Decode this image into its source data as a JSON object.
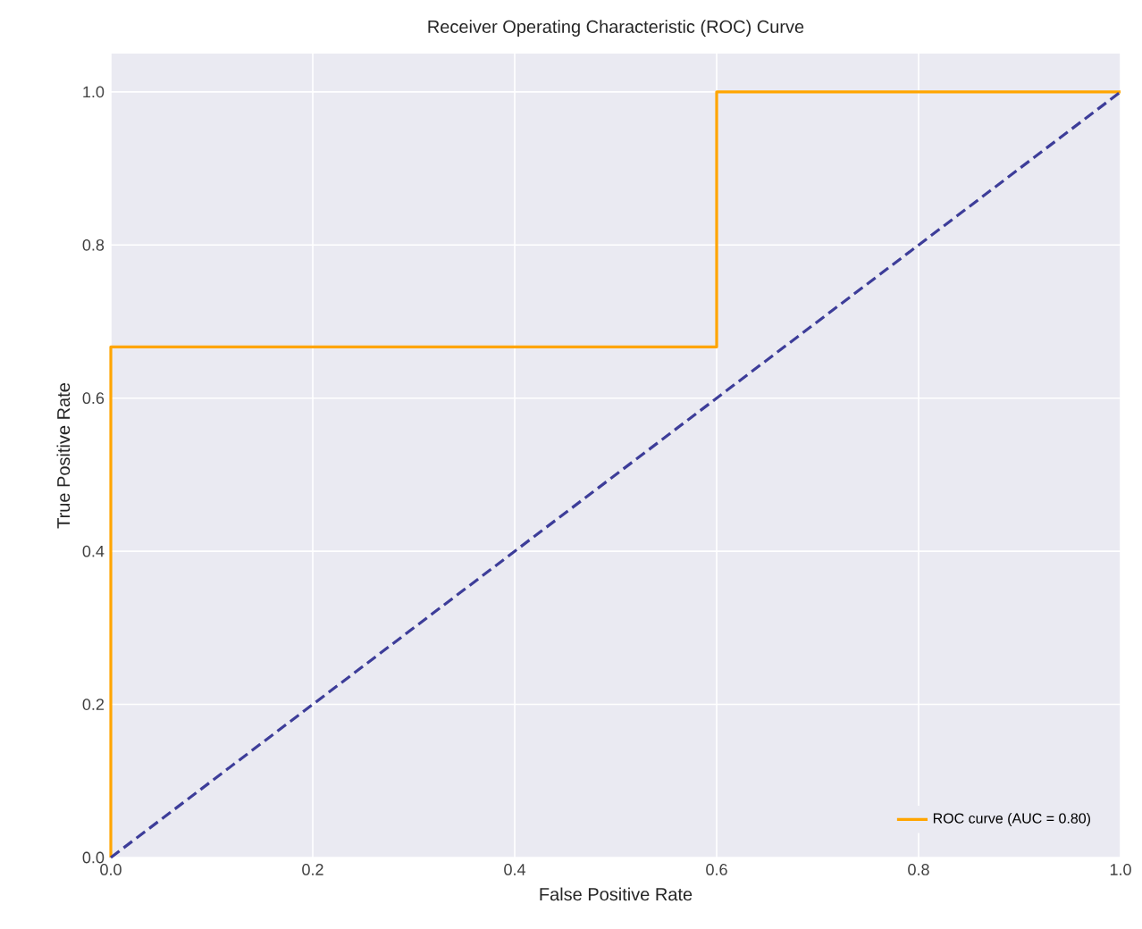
{
  "chart_data": {
    "type": "line",
    "title": "Receiver Operating Characteristic (ROC) Curve",
    "xlabel": "False Positive Rate",
    "ylabel": "True Positive Rate",
    "series": [
      {
        "name": "ROC curve (AUC = 0.80)",
        "color": "#ffa500",
        "x": [
          0,
          0,
          0.6,
          0.6,
          1
        ],
        "values": [
          0,
          0.667,
          0.667,
          1,
          1
        ]
      },
      {
        "color": "#3d3d99",
        "x": [
          0,
          1
        ],
        "values": [
          0,
          1
        ],
        "line_style": "dashed"
      }
    ],
    "xlim": [
      0,
      1
    ],
    "ylim": [
      0,
      1.05
    ],
    "xticks": [
      {
        "value": 0,
        "label": "0.0"
      },
      {
        "value": 0.2,
        "label": "0.2"
      },
      {
        "value": 0.4,
        "label": "0.4"
      },
      {
        "value": 0.6,
        "label": "0.6"
      },
      {
        "value": 0.8,
        "label": "0.8"
      },
      {
        "value": 1,
        "label": "1.0"
      }
    ],
    "yticks": [
      {
        "value": 0,
        "label": "0.0"
      },
      {
        "value": 0.2,
        "label": "0.2"
      },
      {
        "value": 0.4,
        "label": "0.4"
      },
      {
        "value": 0.6,
        "label": "0.6"
      },
      {
        "value": 0.8,
        "label": "0.8"
      },
      {
        "value": 1,
        "label": "1.0"
      }
    ],
    "grid": true,
    "legend": "bottom right"
  }
}
